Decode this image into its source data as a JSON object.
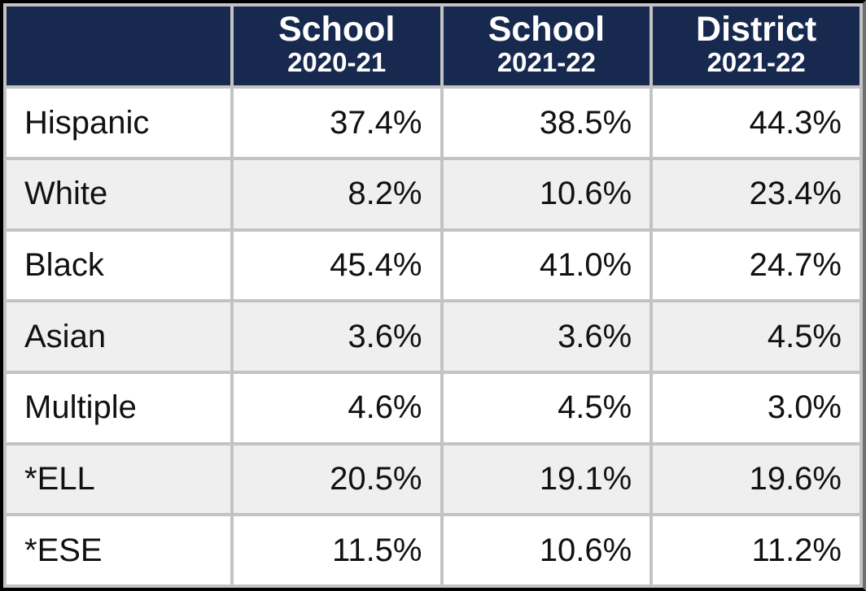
{
  "table": {
    "header_bg": "#17294e",
    "header_fg": "#ffffff",
    "grid_color": "#c2c3c4",
    "row_alt_bg": "#efefef",
    "row_bg": "#ffffff",
    "text_color": "#111111",
    "font_family": "Arial",
    "header_fontsize_top": 43,
    "header_fontsize_sub": 33,
    "cell_fontsize": 40,
    "columns": [
      {
        "top": "",
        "sub": ""
      },
      {
        "top": "School",
        "sub": "2020-21"
      },
      {
        "top": "School",
        "sub": "2021-22"
      },
      {
        "top": "District",
        "sub": "2021-22"
      }
    ],
    "rows": [
      {
        "label": "Hispanic",
        "v1": "37.4%",
        "v2": "38.5%",
        "v3": "44.3%"
      },
      {
        "label": "White",
        "v1": "8.2%",
        "v2": "10.6%",
        "v3": "23.4%"
      },
      {
        "label": "Black",
        "v1": "45.4%",
        "v2": "41.0%",
        "v3": "24.7%"
      },
      {
        "label": "Asian",
        "v1": "3.6%",
        "v2": "3.6%",
        "v3": "4.5%"
      },
      {
        "label": "Multiple",
        "v1": "4.6%",
        "v2": "4.5%",
        "v3": "3.0%"
      },
      {
        "label": "*ELL",
        "v1": "20.5%",
        "v2": "19.1%",
        "v3": "19.6%"
      },
      {
        "label": "*ESE",
        "v1": "11.5%",
        "v2": "10.6%",
        "v3": "11.2%"
      }
    ]
  }
}
